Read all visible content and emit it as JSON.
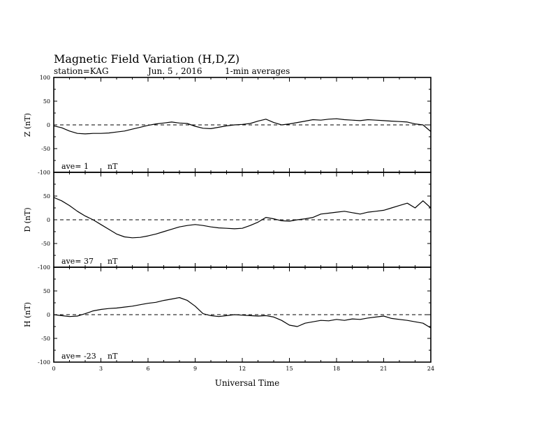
{
  "header": {
    "title": "Magnetic Field Variation (H,D,Z)",
    "station": "station=KAG",
    "date": "Jun. 5  , 2016",
    "averaging": "1-min averages"
  },
  "chart_data": {
    "type": "line",
    "xlabel": "Universal Time",
    "xlim": [
      0,
      24
    ],
    "x_ticks": [
      "0",
      "3",
      "6",
      "9",
      "12",
      "15",
      "18",
      "21",
      "24"
    ],
    "panels": [
      {
        "ylabel": "Z (nT)",
        "ave_label": "ave= 1",
        "unit": "nT",
        "ylim": [
          -100,
          100
        ],
        "y_ticks": [
          "100",
          "50",
          "0",
          "-50",
          "-100"
        ],
        "reference_line": 0,
        "series": [
          {
            "x": [
              0,
              0.5,
              1,
              1.5,
              2,
              2.5,
              3,
              3.5,
              4,
              4.5,
              5,
              5.5,
              6,
              6.5,
              7,
              7.5,
              8,
              8.5,
              9,
              9.5,
              10,
              10.5,
              11,
              11.5,
              12,
              12.5,
              13,
              13.5,
              14,
              14.5,
              15,
              15.5,
              16,
              16.5,
              17,
              17.5,
              18,
              18.5,
              19,
              19.5,
              20,
              20.5,
              21,
              21.5,
              22,
              22.5,
              23,
              23.5,
              24
            ],
            "y": [
              -2,
              -6,
              -13,
              -18,
              -19,
              -18,
              -18,
              -17,
              -15,
              -13,
              -9,
              -5,
              -1,
              2,
              4,
              6,
              4,
              3,
              -3,
              -7,
              -8,
              -5,
              -2,
              0,
              1,
              3,
              8,
              12,
              5,
              0,
              2,
              5,
              8,
              11,
              10,
              12,
              13,
              11,
              10,
              9,
              11,
              10,
              9,
              8,
              7,
              6,
              2,
              0,
              -14
            ]
          }
        ]
      },
      {
        "ylabel": "D (nT)",
        "ave_label": "ave= 37",
        "unit": "nT",
        "ylim": [
          -100,
          100
        ],
        "y_ticks": [
          "100",
          "50",
          "0",
          "-50",
          "-100"
        ],
        "reference_line": 0,
        "series": [
          {
            "x": [
              0,
              0.5,
              1,
              1.5,
              2,
              2.5,
              3,
              3.5,
              4,
              4.5,
              5,
              5.5,
              6,
              6.5,
              7,
              7.5,
              8,
              8.5,
              9,
              9.5,
              10,
              10.5,
              11,
              11.5,
              12,
              12.5,
              13,
              13.5,
              14,
              14.5,
              15,
              15.5,
              16,
              16.5,
              17,
              17.5,
              18,
              18.5,
              19,
              19.5,
              20,
              20.5,
              21,
              21.5,
              22,
              22.5,
              23,
              23.5,
              24
            ],
            "y": [
              47,
              40,
              30,
              18,
              8,
              0,
              -10,
              -20,
              -30,
              -36,
              -38,
              -37,
              -34,
              -30,
              -25,
              -20,
              -15,
              -12,
              -10,
              -12,
              -15,
              -17,
              -18,
              -19,
              -18,
              -12,
              -5,
              5,
              2,
              -2,
              -3,
              0,
              2,
              5,
              12,
              14,
              16,
              18,
              15,
              12,
              16,
              18,
              20,
              25,
              30,
              35,
              25,
              40,
              25
            ]
          }
        ]
      },
      {
        "ylabel": "H (nT)",
        "ave_label": "ave= -23",
        "unit": "nT",
        "ylim": [
          -100,
          100
        ],
        "y_ticks": [
          "100",
          "50",
          "0",
          "-50",
          "-100"
        ],
        "reference_line": 0,
        "series": [
          {
            "x": [
              0,
              0.5,
              1,
              1.5,
              2,
              2.5,
              3,
              3.5,
              4,
              4.5,
              5,
              5.5,
              6,
              6.5,
              7,
              7.5,
              8,
              8.5,
              9,
              9.5,
              10,
              10.5,
              11,
              11.5,
              12,
              12.5,
              13,
              13.5,
              14,
              14.5,
              15,
              15.5,
              16,
              16.5,
              17,
              17.5,
              18,
              18.5,
              19,
              19.5,
              20,
              20.5,
              21,
              21.5,
              22,
              22.5,
              23,
              23.5,
              24
            ],
            "y": [
              0,
              -2,
              -4,
              -3,
              2,
              8,
              11,
              13,
              14,
              16,
              18,
              21,
              24,
              26,
              30,
              33,
              36,
              30,
              18,
              2,
              -2,
              -4,
              -2,
              0,
              -1,
              -2,
              -3,
              -2,
              -5,
              -12,
              -22,
              -25,
              -18,
              -15,
              -12,
              -13,
              -10,
              -12,
              -9,
              -10,
              -7,
              -5,
              -3,
              -8,
              -10,
              -12,
              -15,
              -18,
              -28
            ]
          }
        ]
      }
    ]
  }
}
